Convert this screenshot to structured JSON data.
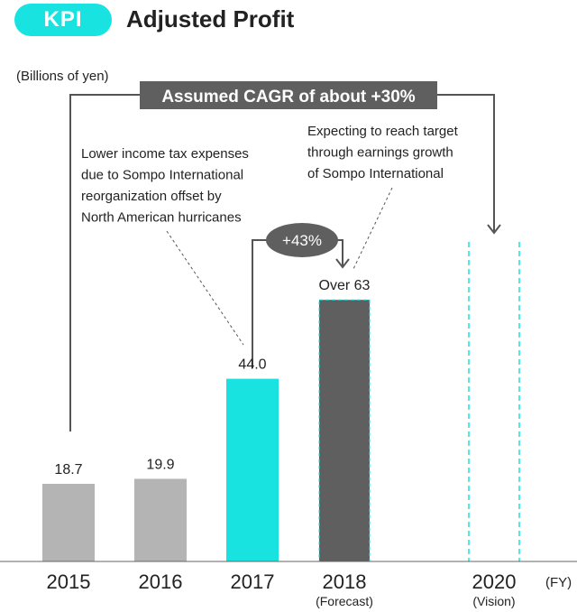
{
  "header": {
    "badge": "KPI",
    "title": "Adjusted Profit"
  },
  "chart_data": {
    "type": "bar",
    "title": "Adjusted Profit",
    "unit_label": "(Billions of yen)",
    "xlabel": "(FY)",
    "categories": [
      "2015",
      "2016",
      "2017",
      "2018",
      "2020"
    ],
    "category_sublabels": [
      "",
      "",
      "",
      "(Forecast)",
      "(Vision)"
    ],
    "values": [
      18.7,
      19.9,
      44.0,
      63,
      null
    ],
    "value_labels": [
      "18.7",
      "19.9",
      "44.0",
      "Over 63",
      ""
    ],
    "bar_styles": [
      "actual",
      "actual",
      "highlight",
      "forecast",
      "vision-outline"
    ],
    "ylim": [
      0,
      90
    ],
    "grid": false,
    "colors": {
      "actual": "#b4b4b4",
      "highlight": "#19e3e0",
      "forecast": "#5f5f5f",
      "forecast_border": "#19e3e0",
      "vision_outline": "#19e3e0",
      "callout_bg": "#5f5f5f",
      "leader_line": "#555555"
    },
    "annotations": {
      "cagr": "Assumed CAGR of about +30%",
      "growth": "+43%",
      "note_2017": [
        "Lower income tax expenses",
        "due to Sompo International",
        "reorganization offset by",
        "North American hurricanes"
      ],
      "note_2018": [
        "Expecting to reach target",
        "through earnings growth",
        "of Sompo International"
      ]
    }
  }
}
